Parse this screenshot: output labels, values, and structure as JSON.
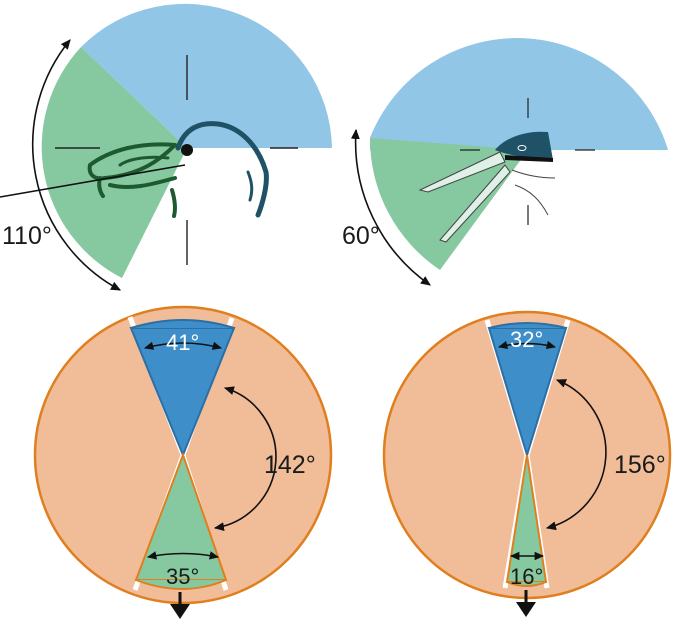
{
  "colors": {
    "blue_sector": "#92c6e6",
    "green_sector": "#86c8a0",
    "orange_fill": "#f1bc98",
    "orange_stroke": "#e07f1f",
    "dark_blue": "#3e8fc9",
    "bird_dark": "#1f5266",
    "plant_green": "#1e5a30"
  },
  "panels": {
    "top_left": {
      "angle_label": "110°"
    },
    "top_right": {
      "angle_label": "60°"
    },
    "bottom_left": {
      "top_label": "41°",
      "side_label": "142°",
      "bottom_label": "35°"
    },
    "bottom_right": {
      "top_label": "32°",
      "side_label": "156°",
      "bottom_label": "16°"
    }
  },
  "icons": [
    "double-arrow-icon",
    "down-arrow-icon",
    "bird-head-icon",
    "plant-icon"
  ]
}
